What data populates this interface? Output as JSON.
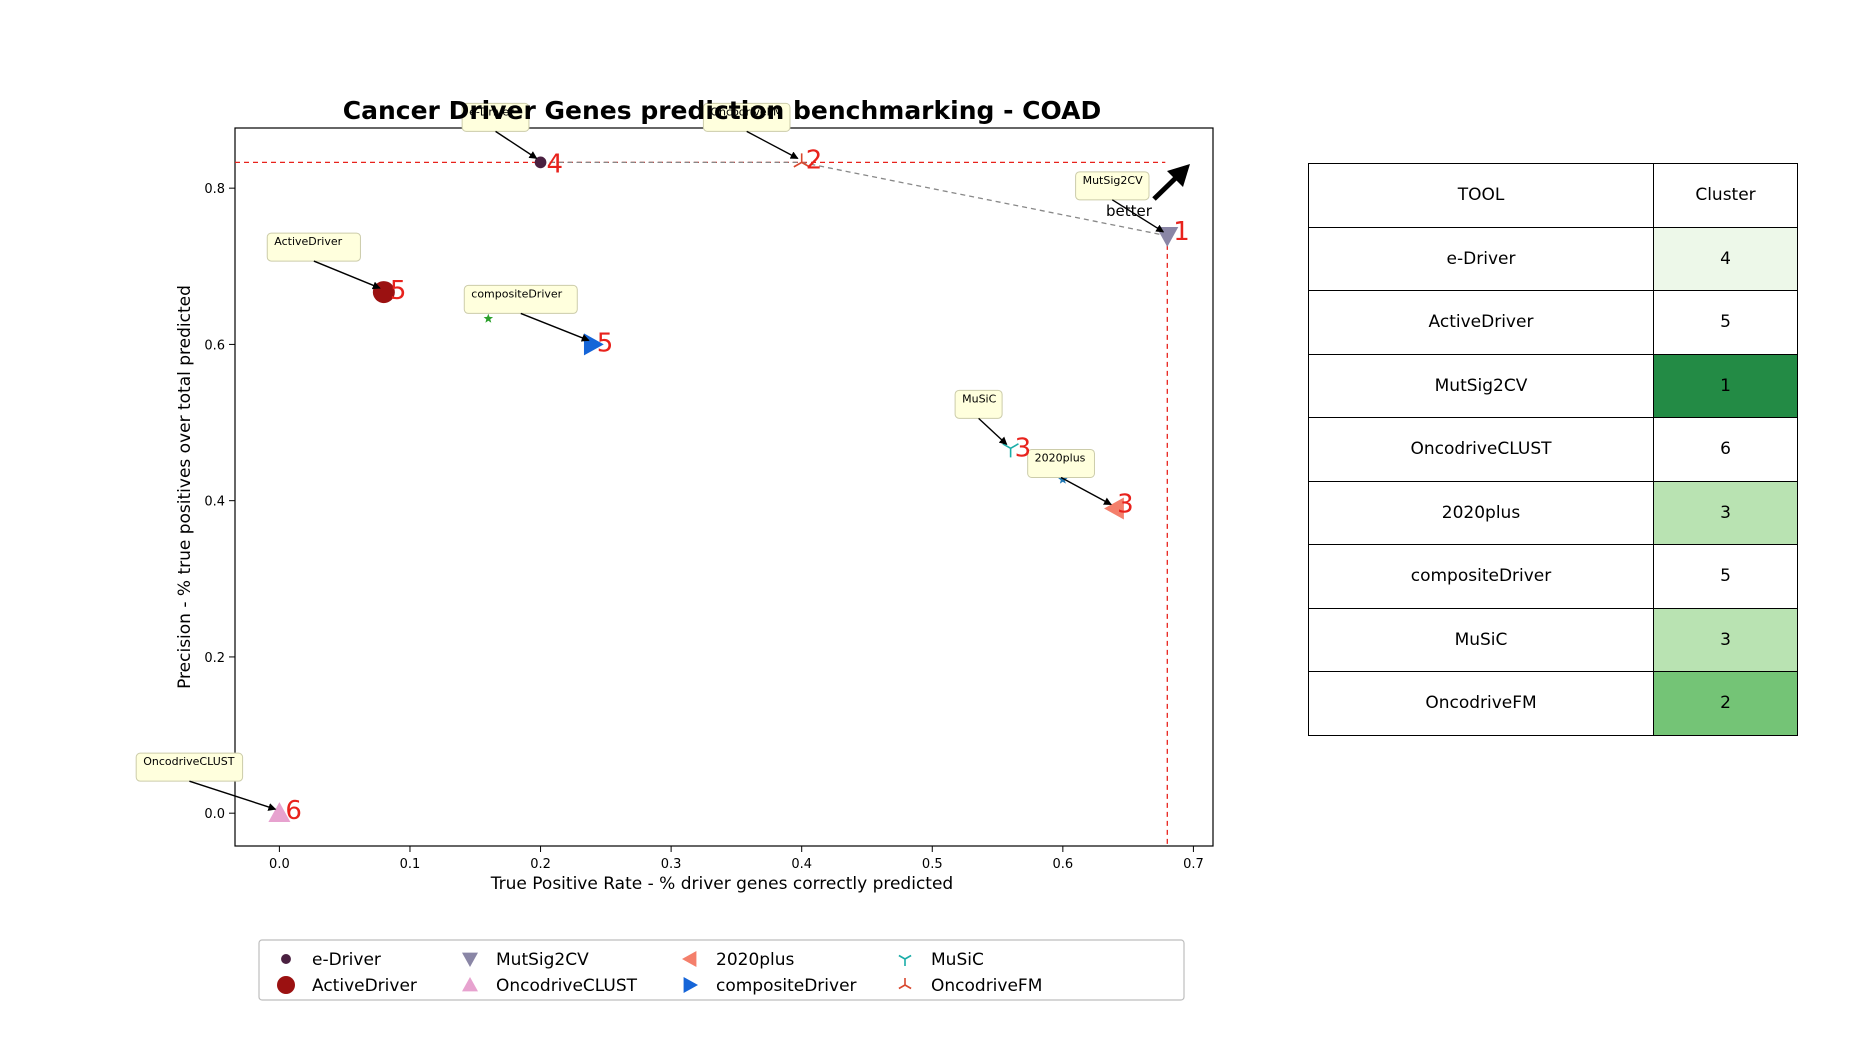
{
  "chart_data": {
    "type": "scatter",
    "title": "Cancer Driver Genes prediction benchmarking - COAD",
    "xlabel": "True Positive Rate - % driver genes correctly predicted",
    "ylabel": "Precision - % true positives over total predicted",
    "xlim": [
      -0.034,
      0.715
    ],
    "ylim": [
      -0.042,
      0.877
    ],
    "xticks": [
      "0.0",
      "0.1",
      "0.2",
      "0.3",
      "0.4",
      "0.5",
      "0.6",
      "0.7"
    ],
    "yticks": [
      "0.0",
      "0.2",
      "0.4",
      "0.6",
      "0.8"
    ],
    "better_label": "better",
    "legend_placement": "bottom-center",
    "points": [
      {
        "name": "e-Driver",
        "x": 0.2,
        "y": 0.833,
        "cluster": "4",
        "color": "#4a2040",
        "marker": "circle-small"
      },
      {
        "name": "ActiveDriver",
        "x": 0.08,
        "y": 0.667,
        "cluster": "5",
        "color": "#9b1111",
        "marker": "circle-large"
      },
      {
        "name": "MutSig2CV",
        "x": 0.68,
        "y": 0.739,
        "cluster": "1",
        "color": "#8a86a6",
        "marker": "triangle-down"
      },
      {
        "name": "OncodriveCLUST",
        "x": 0.0,
        "y": 0.0,
        "cluster": "6",
        "color": "#e7a2cf",
        "marker": "triangle-up"
      },
      {
        "name": "2020plus",
        "x": 0.64,
        "y": 0.39,
        "cluster": "3",
        "color": "#f47f6b",
        "marker": "triangle-left"
      },
      {
        "name": "compositeDriver",
        "x": 0.24,
        "y": 0.6,
        "cluster": "5",
        "color": "#1565d8",
        "marker": "triangle-right"
      },
      {
        "name": "MuSiC",
        "x": 0.56,
        "y": 0.467,
        "cluster": "3",
        "color": "#1aada8",
        "marker": "tri-down"
      },
      {
        "name": "OncodriveFM",
        "x": 0.4,
        "y": 0.833,
        "cluster": "2",
        "color": "#d9482e",
        "marker": "tri-up"
      }
    ],
    "extra_points": [
      {
        "x": 0.16,
        "y": 0.633,
        "color": "#2ca02c"
      },
      {
        "x": 0.6,
        "y": 0.427,
        "color": "#1f77b4"
      }
    ],
    "pareto_frontier": [
      [
        0.2,
        0.833
      ],
      [
        0.4,
        0.833
      ],
      [
        0.68,
        0.739
      ]
    ],
    "pareto_line_color": "#888888",
    "reference_line_color": "#e8221c",
    "label_number_color": "#e8221c",
    "legend_order": [
      "e-Driver",
      "ActiveDriver",
      "MutSig2CV",
      "OncodriveCLUST",
      "2020plus",
      "compositeDriver",
      "MuSiC",
      "OncodriveFM"
    ]
  },
  "table": {
    "headers": {
      "tool": "TOOL",
      "cluster": "Cluster"
    },
    "rows": [
      {
        "tool": "e-Driver",
        "cluster": "4",
        "bg": "#edf8e9"
      },
      {
        "tool": "ActiveDriver",
        "cluster": "5",
        "bg": "#ffffff"
      },
      {
        "tool": "MutSig2CV",
        "cluster": "1",
        "bg": "#238b45"
      },
      {
        "tool": "OncodriveCLUST",
        "cluster": "6",
        "bg": "#ffffff"
      },
      {
        "tool": "2020plus",
        "cluster": "3",
        "bg": "#b9e3b2"
      },
      {
        "tool": "compositeDriver",
        "cluster": "5",
        "bg": "#ffffff"
      },
      {
        "tool": "MuSiC",
        "cluster": "3",
        "bg": "#b9e3b2"
      },
      {
        "tool": "OncodriveFM",
        "cluster": "2",
        "bg": "#74c476"
      }
    ]
  }
}
